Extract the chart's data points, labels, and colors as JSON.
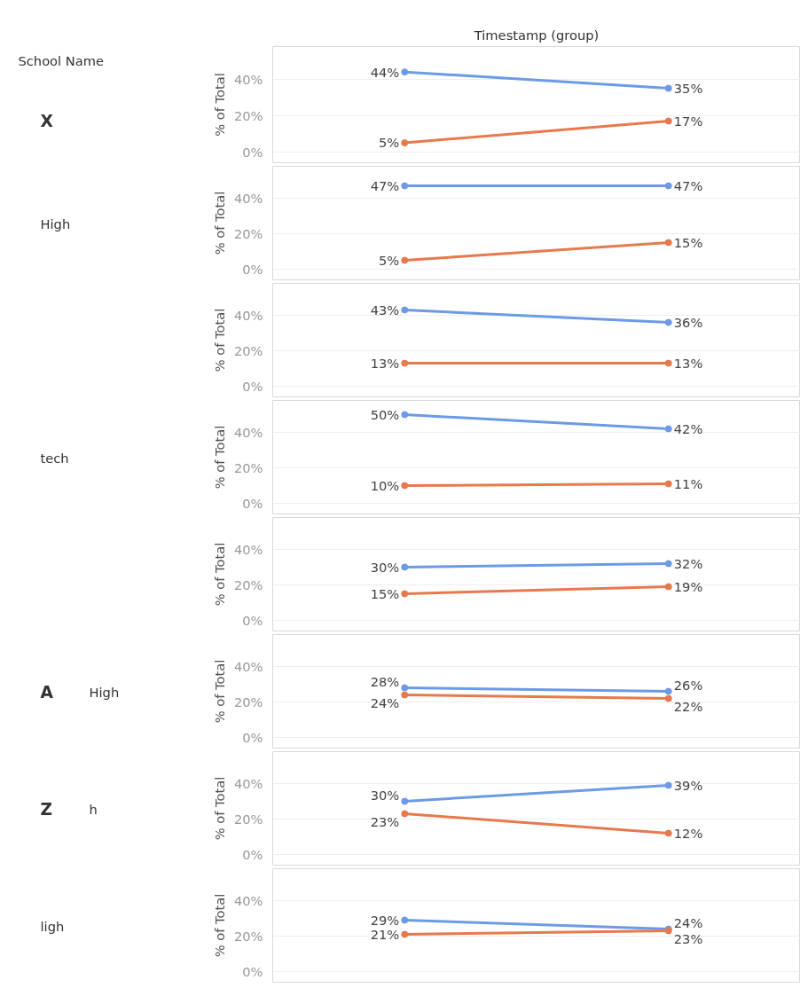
{
  "chart_data": [
    {
      "type": "line",
      "title": "Timestamp (group)",
      "annotations": [
        "School Name",
        "X"
      ],
      "ylabel": "% of Total",
      "categories": [
        null,
        null
      ],
      "ylim": [
        -6,
        58
      ],
      "yticks": [
        {
          "value": 0,
          "label": "0%"
        },
        {
          "value": 20,
          "label": "20%"
        },
        {
          "value": 40,
          "label": "40%"
        }
      ],
      "grid": "y",
      "marker": "circle",
      "tick_labels": "y",
      "series": [
        {
          "color": "#6d9ae6",
          "values": [
            44,
            35
          ],
          "value_labels": [
            "44%",
            "35%"
          ]
        },
        {
          "color": "#e8794c",
          "values": [
            5,
            17
          ],
          "value_labels": [
            "5%",
            "17%"
          ]
        }
      ]
    },
    {
      "type": "line",
      "annotations": [
        "High"
      ],
      "ylabel": "% of Total",
      "categories": [
        null,
        null
      ],
      "ylim": [
        -6,
        58
      ],
      "yticks": [
        {
          "value": 0,
          "label": "0%"
        },
        {
          "value": 20,
          "label": "20%"
        },
        {
          "value": 40,
          "label": "40%"
        }
      ],
      "grid": "y",
      "marker": "circle",
      "tick_labels": "y",
      "series": [
        {
          "color": "#6d9ae6",
          "values": [
            47,
            47
          ],
          "value_labels": [
            "47%",
            "47%"
          ]
        },
        {
          "color": "#e8794c",
          "values": [
            5,
            15
          ],
          "value_labels": [
            "5%",
            "15%"
          ]
        }
      ]
    },
    {
      "type": "line",
      "ylabel": "% of Total",
      "categories": [
        null,
        null
      ],
      "ylim": [
        -6,
        58
      ],
      "yticks": [
        {
          "value": 0,
          "label": "0%"
        },
        {
          "value": 20,
          "label": "20%"
        },
        {
          "value": 40,
          "label": "40%"
        }
      ],
      "grid": "y",
      "marker": "circle",
      "tick_labels": "y",
      "series": [
        {
          "color": "#6d9ae6",
          "values": [
            43,
            36
          ],
          "value_labels": [
            "43%",
            "36%"
          ]
        },
        {
          "color": "#e8794c",
          "values": [
            13,
            13
          ],
          "value_labels": [
            "13%",
            "13%"
          ]
        }
      ]
    },
    {
      "type": "line",
      "annotations": [
        "tech"
      ],
      "ylabel": "% of Total",
      "categories": [
        null,
        null
      ],
      "ylim": [
        -6,
        58
      ],
      "yticks": [
        {
          "value": 0,
          "label": "0%"
        },
        {
          "value": 20,
          "label": "20%"
        },
        {
          "value": 40,
          "label": "40%"
        }
      ],
      "grid": "y",
      "marker": "circle",
      "tick_labels": "y",
      "series": [
        {
          "color": "#6d9ae6",
          "values": [
            50,
            42
          ],
          "value_labels": [
            "50%",
            "42%"
          ]
        },
        {
          "color": "#e8794c",
          "values": [
            10,
            11
          ],
          "value_labels": [
            "10%",
            "11%"
          ]
        }
      ]
    },
    {
      "type": "line",
      "ylabel": "% of Total",
      "categories": [
        null,
        null
      ],
      "ylim": [
        -6,
        58
      ],
      "yticks": [
        {
          "value": 0,
          "label": "0%"
        },
        {
          "value": 20,
          "label": "20%"
        },
        {
          "value": 40,
          "label": "40%"
        }
      ],
      "grid": "y",
      "marker": "circle",
      "tick_labels": "y",
      "series": [
        {
          "color": "#6d9ae6",
          "values": [
            30,
            32
          ],
          "value_labels": [
            "30%",
            "32%"
          ]
        },
        {
          "color": "#e8794c",
          "values": [
            15,
            19
          ],
          "value_labels": [
            "15%",
            "19%"
          ]
        }
      ]
    },
    {
      "type": "line",
      "annotations": [
        "A",
        "High"
      ],
      "ylabel": "% of Total",
      "categories": [
        null,
        null
      ],
      "ylim": [
        -6,
        58
      ],
      "yticks": [
        {
          "value": 0,
          "label": "0%"
        },
        {
          "value": 20,
          "label": "20%"
        },
        {
          "value": 40,
          "label": "40%"
        }
      ],
      "grid": "y",
      "marker": "circle",
      "tick_labels": "y",
      "series": [
        {
          "color": "#6d9ae6",
          "values": [
            28,
            26
          ],
          "value_labels": [
            "28%",
            "26%"
          ]
        },
        {
          "color": "#e8794c",
          "values": [
            24,
            22
          ],
          "value_labels": [
            "24%",
            "22%"
          ]
        }
      ]
    },
    {
      "type": "line",
      "annotations": [
        "Z",
        "h"
      ],
      "ylabel": "% of Total",
      "categories": [
        null,
        null
      ],
      "ylim": [
        -6,
        58
      ],
      "yticks": [
        {
          "value": 0,
          "label": "0%"
        },
        {
          "value": 20,
          "label": "20%"
        },
        {
          "value": 40,
          "label": "40%"
        }
      ],
      "grid": "y",
      "marker": "circle",
      "tick_labels": "y",
      "series": [
        {
          "color": "#6d9ae6",
          "values": [
            30,
            39
          ],
          "value_labels": [
            "30%",
            "39%"
          ]
        },
        {
          "color": "#e8794c",
          "values": [
            23,
            12
          ],
          "value_labels": [
            "23%",
            "12%"
          ]
        }
      ]
    },
    {
      "type": "line",
      "annotations": [
        "ligh"
      ],
      "ylabel": "% of Total",
      "categories": [
        null,
        null
      ],
      "ylim": [
        -6,
        58
      ],
      "yticks": [
        {
          "value": 0,
          "label": "0%"
        },
        {
          "value": 20,
          "label": "20%"
        },
        {
          "value": 40,
          "label": "40%"
        }
      ],
      "grid": "y",
      "marker": "circle",
      "tick_labels": "y",
      "series": [
        {
          "color": "#6d9ae6",
          "values": [
            29,
            24
          ],
          "value_labels": [
            "29%",
            "24%"
          ]
        },
        {
          "color": "#e8794c",
          "values": [
            21,
            23
          ],
          "value_labels": [
            "21%",
            "23%"
          ]
        }
      ]
    }
  ]
}
